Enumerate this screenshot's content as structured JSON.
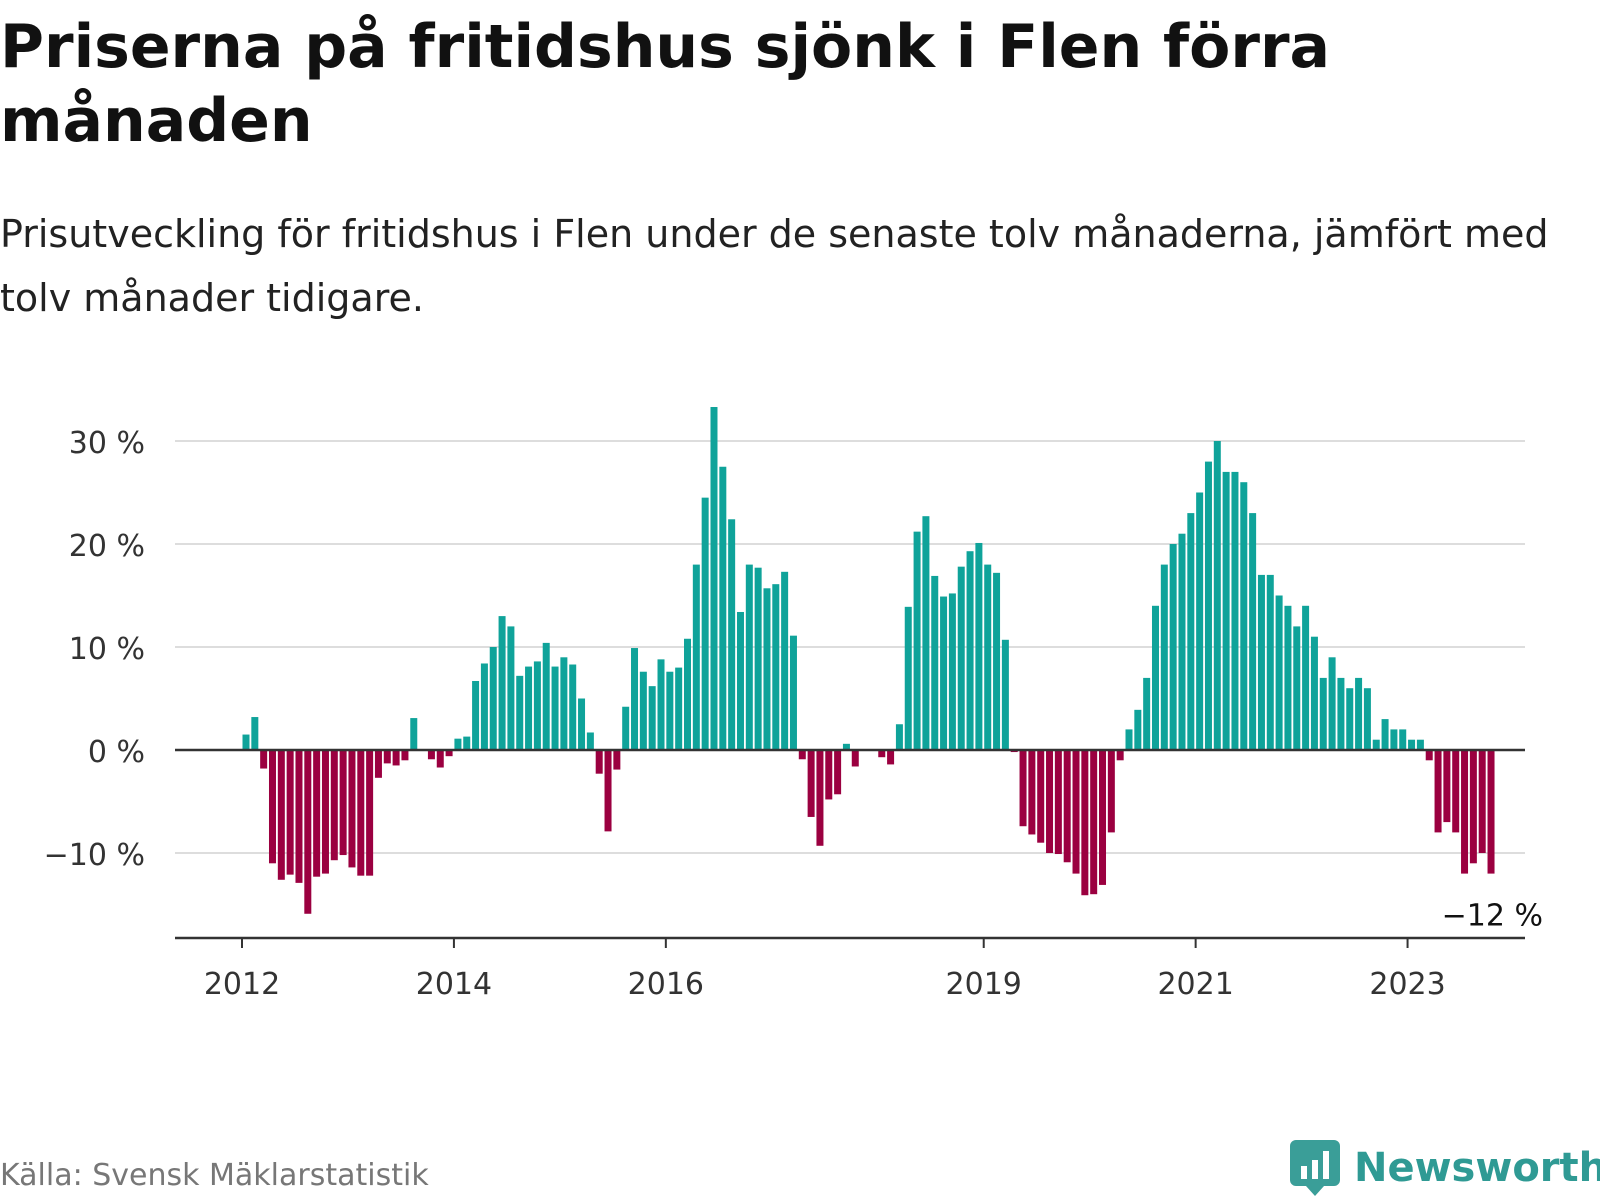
{
  "title": "Priserna på fritidshus sjönk i Flen förra månaden",
  "subtitle": "Prisutveckling för fritidshus i Flen under de senaste tolv månaderna, jämfört med tolv månader tidigare.",
  "source": "Källa: Svensk Mäklarstatistik",
  "brand": {
    "name": "Newsworthy",
    "color": "#2f9a94",
    "icon": "chart-bubble-icon"
  },
  "chart_data": {
    "type": "bar",
    "ylim": [
      -18,
      33
    ],
    "yticks": [
      -10,
      0,
      10,
      20,
      30
    ],
    "ytick_labels": [
      "−10 %",
      "0 %",
      "10 %",
      "20 %",
      "30 %"
    ],
    "xticks": [
      "2012",
      "2014",
      "2016",
      "2019",
      "2021",
      "2023"
    ],
    "x": [
      "2012-01",
      "2012-02",
      "2012-03",
      "2012-04",
      "2012-05",
      "2012-06",
      "2012-07",
      "2012-08",
      "2012-09",
      "2012-10",
      "2012-11",
      "2012-12",
      "2013-01",
      "2013-02",
      "2013-03",
      "2013-04",
      "2013-05",
      "2013-06",
      "2013-07",
      "2013-08",
      "2013-09",
      "2013-10",
      "2013-11",
      "2013-12",
      "2014-01",
      "2014-02",
      "2014-03",
      "2014-04",
      "2014-05",
      "2014-06",
      "2014-07",
      "2014-08",
      "2014-09",
      "2014-10",
      "2014-11",
      "2014-12",
      "2015-01",
      "2015-02",
      "2015-03",
      "2015-04",
      "2015-05",
      "2015-06",
      "2015-07",
      "2015-08",
      "2015-09",
      "2015-10",
      "2015-11",
      "2015-12",
      "2016-01",
      "2016-02",
      "2016-03",
      "2016-04",
      "2016-05",
      "2016-06",
      "2016-07",
      "2016-08",
      "2016-09",
      "2016-10",
      "2016-11",
      "2016-12",
      "2017-01",
      "2017-02",
      "2017-03",
      "2017-04",
      "2017-05",
      "2017-06",
      "2017-07",
      "2017-08",
      "2017-09",
      "2017-10",
      "2017-11",
      "2017-12",
      "2018-01",
      "2018-02",
      "2018-03",
      "2018-04",
      "2018-05",
      "2018-06",
      "2018-07",
      "2018-08",
      "2018-09",
      "2018-10",
      "2018-11",
      "2018-12",
      "2019-01",
      "2019-02",
      "2019-03",
      "2019-04",
      "2019-05",
      "2019-06",
      "2019-07",
      "2019-08",
      "2019-09",
      "2019-10",
      "2019-11",
      "2019-12",
      "2020-01",
      "2020-02",
      "2020-03",
      "2020-04",
      "2020-05",
      "2020-06",
      "2020-07",
      "2020-08",
      "2020-09",
      "2020-10",
      "2020-11",
      "2020-12",
      "2021-01",
      "2021-02",
      "2021-03",
      "2021-04",
      "2021-05",
      "2021-06",
      "2021-07",
      "2021-08",
      "2021-09",
      "2021-10",
      "2021-11",
      "2021-12",
      "2022-01",
      "2022-02",
      "2022-03",
      "2022-04",
      "2022-05",
      "2022-06",
      "2022-07",
      "2022-08",
      "2022-09",
      "2022-10",
      "2022-11",
      "2022-12",
      "2023-01",
      "2023-02",
      "2023-03",
      "2023-04",
      "2023-05",
      "2023-06",
      "2023-07",
      "2023-08",
      "2023-09",
      "2023-10"
    ],
    "values": [
      1.5,
      3.2,
      -1.8,
      -11,
      -12.6,
      -12.1,
      -12.9,
      -15.9,
      -12.3,
      -12,
      -10.7,
      -10.2,
      -11.4,
      -12.2,
      -12.2,
      -2.7,
      -1.3,
      -1.5,
      -1,
      3.1,
      null,
      -0.9,
      -1.7,
      -0.6,
      1.1,
      1.3,
      6.7,
      8.4,
      10,
      13,
      12,
      7.2,
      8.1,
      8.6,
      10.4,
      8.1,
      9,
      8.3,
      5,
      1.7,
      -2.3,
      -7.9,
      -1.9,
      4.2,
      9.9,
      7.6,
      6.2,
      8.8,
      7.6,
      8,
      10.8,
      18,
      24.5,
      33.3,
      27.5,
      22.4,
      13.4,
      18,
      17.7,
      15.7,
      16.1,
      17.3,
      11.1,
      -0.9,
      -6.5,
      -9.3,
      -4.8,
      -4.3,
      0.6,
      -1.6,
      null,
      null,
      -0.7,
      -1.4,
      2.5,
      13.9,
      21.2,
      22.7,
      16.9,
      14.9,
      15.2,
      17.8,
      19.3,
      20.1,
      18,
      17.2,
      10.7,
      -0.2,
      -7.4,
      -8.2,
      -9,
      -10,
      -10.1,
      -10.9,
      -12,
      -14.1,
      -14,
      -13.1,
      -8,
      -1,
      2,
      3.9,
      7,
      14,
      18,
      20,
      21,
      23,
      25,
      28,
      30,
      27,
      27,
      26,
      23,
      17,
      17,
      15,
      14,
      12,
      14,
      11,
      7,
      9,
      7,
      6,
      7,
      6,
      1,
      3,
      2,
      2,
      1,
      1,
      -1,
      -8,
      -7,
      -8,
      -12,
      -11,
      -10,
      -12
    ],
    "annotation": {
      "text": "−12 %",
      "at": "2023-10"
    },
    "colors": {
      "positive": "#0fa39a",
      "negative": "#9b0040",
      "grid": "#dddddd",
      "axis": "#333333"
    },
    "grid": true,
    "legend": "none"
  }
}
